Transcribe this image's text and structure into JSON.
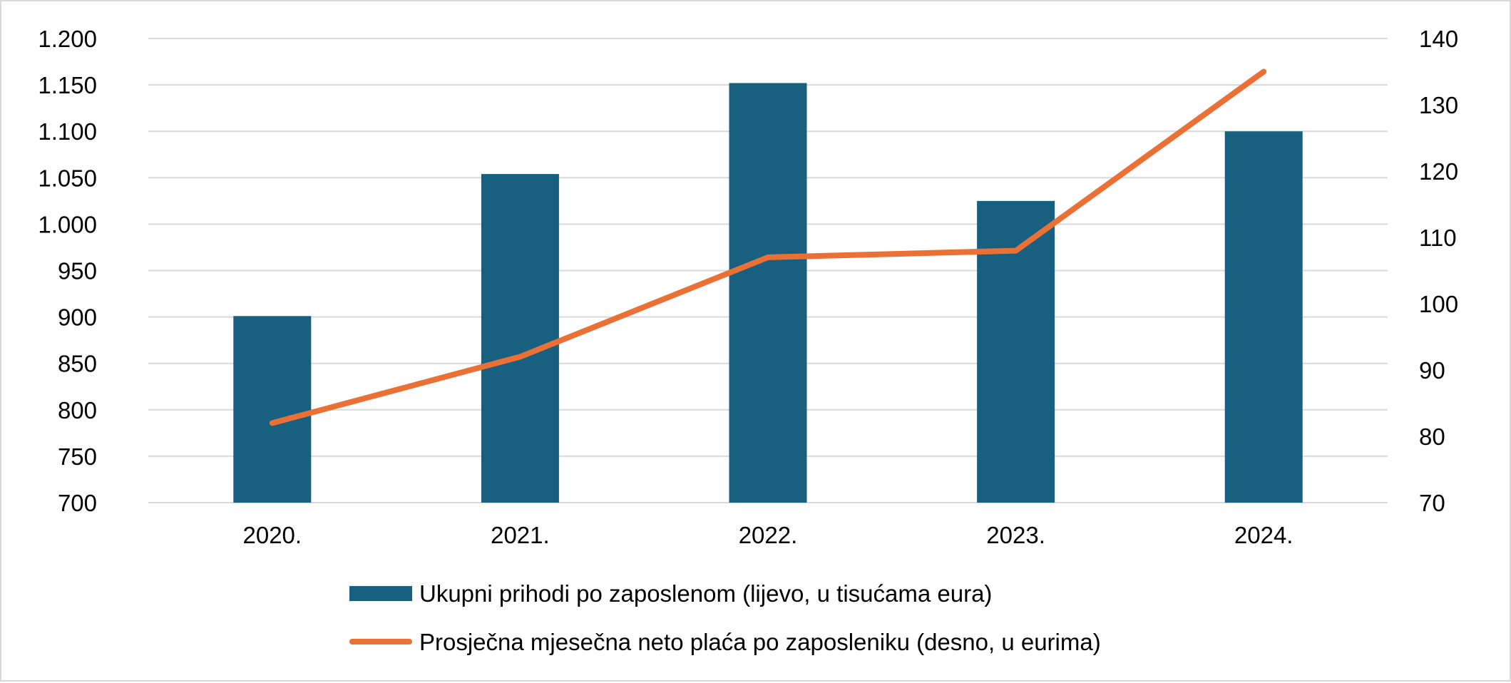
{
  "chart_data": {
    "type": "bar",
    "title": "",
    "xlabel": "",
    "categories": [
      "2020.",
      "2021.",
      "2022.",
      "2023.",
      "2024."
    ],
    "series": [
      {
        "name": "Ukupni prihodi po zaposlenom (lijevo, u tisućama eura)",
        "type": "bar",
        "axis": "left",
        "color": "#17607f",
        "values": [
          901,
          1054,
          1152,
          1025,
          1100
        ]
      },
      {
        "name": "Prosječna mjesečna neto plaća po zaposleniku (desno, u eurima)",
        "type": "line",
        "axis": "right",
        "color": "#ea7035",
        "values": [
          82,
          92,
          107,
          108,
          135
        ]
      }
    ],
    "y_left": {
      "ylim": [
        700,
        1200
      ],
      "ticks": [
        700,
        750,
        800,
        850,
        900,
        950,
        1000,
        1050,
        1100,
        1150,
        1200
      ],
      "tick_labels": [
        "700",
        "750",
        "800",
        "850",
        "900",
        "950",
        "1.000",
        "1.050",
        "1.100",
        "1.150",
        "1.200"
      ]
    },
    "y_right": {
      "ylim": [
        70,
        140
      ],
      "ticks": [
        70,
        80,
        90,
        100,
        110,
        120,
        130,
        140
      ],
      "tick_labels": [
        "70",
        "80",
        "90",
        "100",
        "110",
        "120",
        "130",
        "140"
      ]
    },
    "grid": true,
    "legend_position": "bottom"
  }
}
